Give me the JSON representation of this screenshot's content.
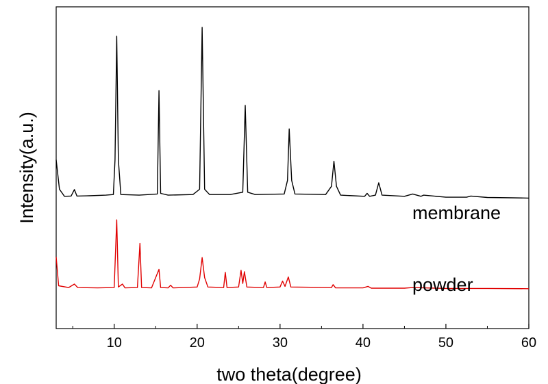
{
  "chart_data": {
    "type": "line",
    "title": "",
    "xlabel": "two theta(degree)",
    "ylabel": "Intensity(a.u.)",
    "xlim": [
      3,
      60
    ],
    "ylim": [
      0,
      100
    ],
    "x_ticks": [
      10,
      20,
      30,
      40,
      50,
      60
    ],
    "y_ticks_labeled": false,
    "grid": false,
    "legend": "none",
    "series": [
      {
        "name": "membrane",
        "color": "#000000",
        "baseline": 42.1,
        "points": [
          [
            3.0,
            55.0
          ],
          [
            3.4,
            45.0
          ],
          [
            4.0,
            42.6
          ],
          [
            4.8,
            42.7
          ],
          [
            5.2,
            44.9
          ],
          [
            5.5,
            42.7
          ],
          [
            7.0,
            42.8
          ],
          [
            9.0,
            43.0
          ],
          [
            9.9,
            43.2
          ],
          [
            10.1,
            55.0
          ],
          [
            10.3,
            97.0
          ],
          [
            10.5,
            55.0
          ],
          [
            10.8,
            43.2
          ],
          [
            13.0,
            43.0
          ],
          [
            15.2,
            43.4
          ],
          [
            15.4,
            78.5
          ],
          [
            15.6,
            43.6
          ],
          [
            16.5,
            43.0
          ],
          [
            19.5,
            43.2
          ],
          [
            20.3,
            45.0
          ],
          [
            20.6,
            100.0
          ],
          [
            20.9,
            45.0
          ],
          [
            21.5,
            43.2
          ],
          [
            24.0,
            43.2
          ],
          [
            25.5,
            44.0
          ],
          [
            25.8,
            73.5
          ],
          [
            26.1,
            44.0
          ],
          [
            27.0,
            43.2
          ],
          [
            30.5,
            43.4
          ],
          [
            30.9,
            48.0
          ],
          [
            31.1,
            65.5
          ],
          [
            31.4,
            48.0
          ],
          [
            31.8,
            43.4
          ],
          [
            35.5,
            43.2
          ],
          [
            36.2,
            46.0
          ],
          [
            36.5,
            54.5
          ],
          [
            36.8,
            46.0
          ],
          [
            37.3,
            43.0
          ],
          [
            40.2,
            42.6
          ],
          [
            40.5,
            43.6
          ],
          [
            40.8,
            42.6
          ],
          [
            41.5,
            43.0
          ],
          [
            41.9,
            47.2
          ],
          [
            42.3,
            43.0
          ],
          [
            45.0,
            42.6
          ],
          [
            46.0,
            43.4
          ],
          [
            47.0,
            42.6
          ],
          [
            47.3,
            43.0
          ],
          [
            50.0,
            42.3
          ],
          [
            52.5,
            42.3
          ],
          [
            53.0,
            42.7
          ],
          [
            55.0,
            42.2
          ],
          [
            58.0,
            42.1
          ],
          [
            60.0,
            42.0
          ]
        ]
      },
      {
        "name": "powder",
        "color": "#e00000",
        "baseline": 11.3,
        "points": [
          [
            3.0,
            22.0
          ],
          [
            3.3,
            12.2
          ],
          [
            4.5,
            11.6
          ],
          [
            5.2,
            12.8
          ],
          [
            5.6,
            11.6
          ],
          [
            8.0,
            11.5
          ],
          [
            10.0,
            11.6
          ],
          [
            10.3,
            34.6
          ],
          [
            10.5,
            11.8
          ],
          [
            11.0,
            12.8
          ],
          [
            11.3,
            11.5
          ],
          [
            12.8,
            11.6
          ],
          [
            13.1,
            26.6
          ],
          [
            13.3,
            11.6
          ],
          [
            14.5,
            11.5
          ],
          [
            15.4,
            17.8
          ],
          [
            15.6,
            11.6
          ],
          [
            16.5,
            11.5
          ],
          [
            16.8,
            12.4
          ],
          [
            17.1,
            11.5
          ],
          [
            20.0,
            11.8
          ],
          [
            20.3,
            14.5
          ],
          [
            20.6,
            21.8
          ],
          [
            20.9,
            15.0
          ],
          [
            21.3,
            11.8
          ],
          [
            23.2,
            11.6
          ],
          [
            23.4,
            16.8
          ],
          [
            23.6,
            11.6
          ],
          [
            25.0,
            11.8
          ],
          [
            25.3,
            17.5
          ],
          [
            25.5,
            13.0
          ],
          [
            25.7,
            17.0
          ],
          [
            26.0,
            11.8
          ],
          [
            28.0,
            11.6
          ],
          [
            28.2,
            13.5
          ],
          [
            28.4,
            11.6
          ],
          [
            30.0,
            11.8
          ],
          [
            30.3,
            13.8
          ],
          [
            30.6,
            12.0
          ],
          [
            31.0,
            15.2
          ],
          [
            31.3,
            11.8
          ],
          [
            36.2,
            11.6
          ],
          [
            36.4,
            12.6
          ],
          [
            36.7,
            11.5
          ],
          [
            38.0,
            11.5
          ],
          [
            40.0,
            11.5
          ],
          [
            40.6,
            12.0
          ],
          [
            41.0,
            11.4
          ],
          [
            45.0,
            11.4
          ],
          [
            46.0,
            11.6
          ],
          [
            50.0,
            11.3
          ],
          [
            55.0,
            11.3
          ],
          [
            60.0,
            11.2
          ]
        ]
      }
    ]
  }
}
